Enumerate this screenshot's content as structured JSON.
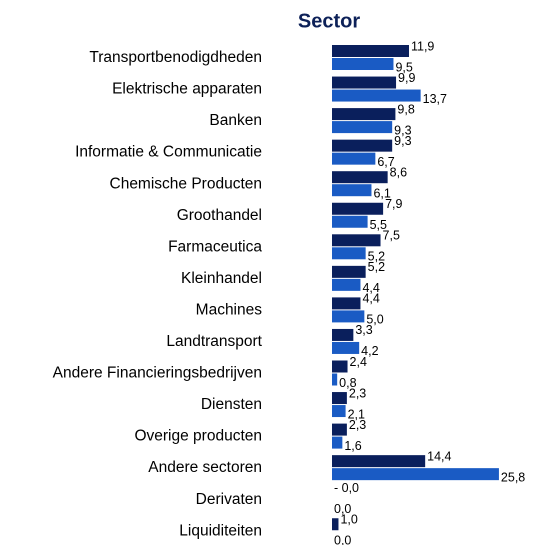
{
  "chart_data": {
    "type": "hbar",
    "title": "Sector",
    "categories": [
      "Transportbenodigdheden",
      "Elektrische apparaten",
      "Banken",
      "Informatie & Communicatie",
      "Chemische Producten",
      "Groothandel",
      "Farmaceutica",
      "Kleinhandel",
      "Machines",
      "Landtransport",
      "Andere Financieringsbedrijven",
      "Diensten",
      "Overige producten",
      "Andere sectoren",
      "Derivaten",
      "Liquiditeiten"
    ],
    "series": [
      {
        "color": "#0a1f5c",
        "values": [
          11.9,
          9.9,
          9.8,
          9.3,
          8.6,
          7.9,
          7.5,
          5.2,
          4.4,
          3.3,
          2.4,
          2.3,
          2.3,
          14.4,
          -0.0,
          1.0
        ],
        "value_labels": [
          "11,9",
          "9,9",
          "9,8",
          "9,3",
          "8,6",
          "7,9",
          "7,5",
          "5,2",
          "4,4",
          "3,3",
          "2,4",
          "2,3",
          "2,3",
          "14,4",
          "- 0,0",
          "1,0"
        ]
      },
      {
        "color": "#1a5bc4",
        "values": [
          9.5,
          13.7,
          9.3,
          6.7,
          6.1,
          5.5,
          5.2,
          4.4,
          5.0,
          4.2,
          0.8,
          2.1,
          1.6,
          25.8,
          0.0,
          0.0
        ],
        "value_labels": [
          "9,5",
          "13,7",
          "9,3",
          "6,7",
          "6,1",
          "5,5",
          "5,2",
          "4,4",
          "5,0",
          "4,2",
          "0,8",
          "2,1",
          "1,6",
          "25,8",
          "0,0",
          "0,0"
        ]
      }
    ]
  }
}
